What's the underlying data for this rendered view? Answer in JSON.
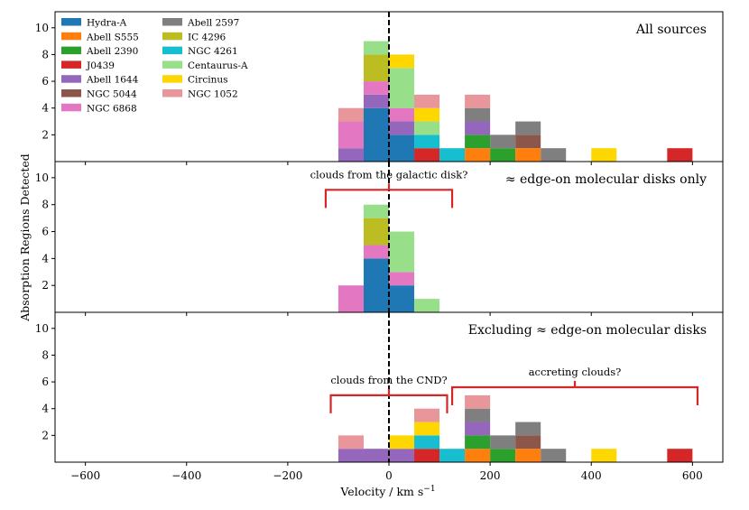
{
  "chart_data": {
    "type": "bar",
    "stacked": true,
    "xlabel": "Velocity / km s",
    "xlabel_exponent": "−1",
    "ylabel": "Absorption Regions Detected",
    "xlim": [
      -660,
      660
    ],
    "ylim": [
      0,
      11.2
    ],
    "bin_width": 50,
    "x_ticks": [
      -600,
      -400,
      -200,
      0,
      200,
      400,
      600
    ],
    "x_tick_labels": [
      "−600",
      "−400",
      "−200",
      "0",
      "200",
      "400",
      "600"
    ],
    "y_ticks": [
      2,
      4,
      6,
      8,
      10
    ],
    "y_tick_labels": [
      "2",
      "4",
      "6",
      "8",
      "10"
    ],
    "zero_line": "dashed vertical line at 0",
    "legend_location": "top-left",
    "series": [
      {
        "name": "Hydra-A",
        "color": "#1f77b4"
      },
      {
        "name": "Abell S555",
        "color": "#ff7f0e"
      },
      {
        "name": "Abell 2390",
        "color": "#2ca02c"
      },
      {
        "name": "J0439",
        "color": "#d62728"
      },
      {
        "name": "Abell 1644",
        "color": "#9467bd"
      },
      {
        "name": "NGC 5044",
        "color": "#8c564b"
      },
      {
        "name": "NGC 6868",
        "color": "#e377c2"
      },
      {
        "name": "Abell 2597",
        "color": "#7f7f7f"
      },
      {
        "name": "IC 4296",
        "color": "#bcbd22"
      },
      {
        "name": "NGC 4261",
        "color": "#17becf"
      },
      {
        "name": "Centaurus-A",
        "color": "#98df8a"
      },
      {
        "name": "Circinus",
        "color": "#ffd700"
      },
      {
        "name": "NGC 1052",
        "color": "#e8969a"
      }
    ],
    "panels": [
      {
        "title": "All sources",
        "bins": [
          {
            "x0": -100,
            "stack": [
              [
                "Abell 1644",
                1
              ],
              [
                "NGC 6868",
                2
              ],
              [
                "NGC 1052",
                1
              ]
            ]
          },
          {
            "x0": -50,
            "stack": [
              [
                "Hydra-A",
                4
              ],
              [
                "Abell 1644",
                1
              ],
              [
                "NGC 6868",
                1
              ],
              [
                "IC 4296",
                2
              ],
              [
                "Centaurus-A",
                1
              ]
            ]
          },
          {
            "x0": 0,
            "stack": [
              [
                "Hydra-A",
                2
              ],
              [
                "Abell 1644",
                1
              ],
              [
                "NGC 6868",
                1
              ],
              [
                "Centaurus-A",
                3
              ],
              [
                "Circinus",
                1
              ]
            ]
          },
          {
            "x0": 50,
            "stack": [
              [
                "J0439",
                1
              ],
              [
                "NGC 4261",
                1
              ],
              [
                "Centaurus-A",
                1
              ],
              [
                "Circinus",
                1
              ],
              [
                "NGC 1052",
                1
              ]
            ]
          },
          {
            "x0": 100,
            "stack": [
              [
                "NGC 4261",
                1
              ]
            ]
          },
          {
            "x0": 150,
            "stack": [
              [
                "Abell S555",
                1
              ],
              [
                "Abell 2390",
                1
              ],
              [
                "Abell 1644",
                1
              ],
              [
                "Abell 2597",
                1
              ],
              [
                "NGC 1052",
                1
              ]
            ]
          },
          {
            "x0": 200,
            "stack": [
              [
                "Abell 2390",
                1
              ],
              [
                "Abell 2597",
                1
              ]
            ]
          },
          {
            "x0": 250,
            "stack": [
              [
                "Abell S555",
                1
              ],
              [
                "NGC 5044",
                1
              ],
              [
                "Abell 2597",
                1
              ]
            ]
          },
          {
            "x0": 300,
            "stack": [
              [
                "Abell 2597",
                1
              ]
            ]
          },
          {
            "x0": 400,
            "stack": [
              [
                "Circinus",
                1
              ]
            ]
          },
          {
            "x0": 550,
            "stack": [
              [
                "J0439",
                1
              ]
            ]
          }
        ],
        "annotations": []
      },
      {
        "title": "≈ edge-on molecular disks only",
        "bins": [
          {
            "x0": -100,
            "stack": [
              [
                "NGC 6868",
                2
              ]
            ]
          },
          {
            "x0": -50,
            "stack": [
              [
                "Hydra-A",
                4
              ],
              [
                "NGC 6868",
                1
              ],
              [
                "IC 4296",
                2
              ],
              [
                "Centaurus-A",
                1
              ]
            ]
          },
          {
            "x0": 0,
            "stack": [
              [
                "Hydra-A",
                2
              ],
              [
                "NGC 6868",
                1
              ],
              [
                "Centaurus-A",
                3
              ]
            ]
          },
          {
            "x0": 50,
            "stack": [
              [
                "Centaurus-A",
                1
              ]
            ]
          }
        ],
        "annotations": [
          {
            "text": "clouds from the galactic disk?",
            "bracket_x": [
              -125,
              125
            ],
            "bracket_y": 9.1
          }
        ]
      },
      {
        "title": "Excluding ≈ edge-on molecular disks",
        "bins": [
          {
            "x0": -100,
            "stack": [
              [
                "Abell 1644",
                1
              ],
              [
                "NGC 1052",
                1
              ]
            ]
          },
          {
            "x0": -50,
            "stack": [
              [
                "Abell 1644",
                1
              ]
            ]
          },
          {
            "x0": 0,
            "stack": [
              [
                "Abell 1644",
                1
              ],
              [
                "Circinus",
                1
              ]
            ]
          },
          {
            "x0": 50,
            "stack": [
              [
                "J0439",
                1
              ],
              [
                "NGC 4261",
                1
              ],
              [
                "Circinus",
                1
              ],
              [
                "NGC 1052",
                1
              ]
            ]
          },
          {
            "x0": 100,
            "stack": [
              [
                "NGC 4261",
                1
              ]
            ]
          },
          {
            "x0": 150,
            "stack": [
              [
                "Abell S555",
                1
              ],
              [
                "Abell 2390",
                1
              ],
              [
                "Abell 1644",
                1
              ],
              [
                "Abell 2597",
                1
              ],
              [
                "NGC 1052",
                1
              ]
            ]
          },
          {
            "x0": 200,
            "stack": [
              [
                "Abell 2390",
                1
              ],
              [
                "Abell 2597",
                1
              ]
            ]
          },
          {
            "x0": 250,
            "stack": [
              [
                "Abell S555",
                1
              ],
              [
                "NGC 5044",
                1
              ],
              [
                "Abell 2597",
                1
              ]
            ]
          },
          {
            "x0": 300,
            "stack": [
              [
                "Abell 2597",
                1
              ]
            ]
          },
          {
            "x0": 400,
            "stack": [
              [
                "Circinus",
                1
              ]
            ]
          },
          {
            "x0": 550,
            "stack": [
              [
                "J0439",
                1
              ]
            ]
          }
        ],
        "annotations": [
          {
            "text": "clouds from the CND?",
            "bracket_x": [
              -115,
              115
            ],
            "bracket_y": 5.0
          },
          {
            "text": "accreting clouds?",
            "bracket_x": [
              125,
              610
            ],
            "bracket_y": 5.6
          }
        ]
      }
    ]
  }
}
